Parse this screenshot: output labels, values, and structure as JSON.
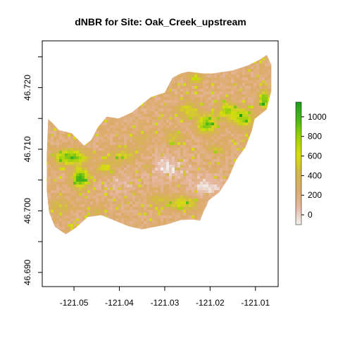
{
  "chart_data": {
    "type": "heatmap",
    "title": "dNBR for Site: Oak_Creek_upstream",
    "xlabel": "",
    "ylabel": "",
    "xlim": [
      -121.057,
      -121.005
    ],
    "ylim": [
      46.6877,
      46.7276
    ],
    "x_ticks": [
      -121.05,
      -121.04,
      -121.03,
      -121.02,
      -121.01
    ],
    "x_tick_labels": [
      "-121.05",
      "-121.04",
      "-121.03",
      "-121.02",
      "-121.01"
    ],
    "y_ticks": [
      46.69,
      46.7,
      46.71,
      46.72
    ],
    "y_tick_labels": [
      "46.690",
      "46.700",
      "46.710",
      "46.720"
    ],
    "colorbar": {
      "range": [
        -100,
        1150
      ],
      "ticks": [
        0,
        200,
        400,
        600,
        800,
        1000
      ],
      "tick_labels": [
        "0",
        "200",
        "400",
        "600",
        "800",
        "1000"
      ],
      "colors": [
        "#f2f2f2",
        "#e6b8a2",
        "#dcab6a",
        "#d4b84a",
        "#d7dd0e",
        "#9fcf12",
        "#4bb81a",
        "#1e9e1e"
      ]
    },
    "region_outline": [
      [
        -121.0557,
        46.7149
      ],
      [
        -121.0548,
        46.7143
      ],
      [
        -121.0533,
        46.7131
      ],
      [
        -121.0505,
        46.7126
      ],
      [
        -121.0478,
        46.7106
      ],
      [
        -121.0462,
        46.7115
      ],
      [
        -121.0448,
        46.7135
      ],
      [
        -121.0428,
        46.7153
      ],
      [
        -121.0402,
        46.715
      ],
      [
        -121.0372,
        46.716
      ],
      [
        -121.0352,
        46.7172
      ],
      [
        -121.033,
        46.7185
      ],
      [
        -121.03,
        46.7192
      ],
      [
        -121.0283,
        46.7216
      ],
      [
        -121.0265,
        46.7223
      ],
      [
        -121.0248,
        46.7226
      ],
      [
        -121.0215,
        46.7223
      ],
      [
        -121.0195,
        46.7223
      ],
      [
        -121.015,
        46.7228
      ],
      [
        -121.0117,
        46.7236
      ],
      [
        -121.0092,
        46.7245
      ],
      [
        -121.0075,
        46.7253
      ],
      [
        -121.0065,
        46.7237
      ],
      [
        -121.0065,
        46.7195
      ],
      [
        -121.0075,
        46.7165
      ],
      [
        -121.0102,
        46.7149
      ],
      [
        -121.0108,
        46.713
      ],
      [
        -121.0122,
        46.7103
      ],
      [
        -121.0142,
        46.7083
      ],
      [
        -121.016,
        46.7052
      ],
      [
        -121.018,
        46.703
      ],
      [
        -121.0203,
        46.7017
      ],
      [
        -121.0208,
        46.7008
      ],
      [
        -121.0215,
        46.6998
      ],
      [
        -121.0222,
        46.6984
      ],
      [
        -121.0237,
        46.6986
      ],
      [
        -121.0265,
        46.6985
      ],
      [
        -121.0295,
        46.6978
      ],
      [
        -121.0322,
        46.6974
      ],
      [
        -121.035,
        46.697
      ],
      [
        -121.038,
        46.6975
      ],
      [
        -121.041,
        46.6984
      ],
      [
        -121.044,
        46.6993
      ],
      [
        -121.047,
        46.699
      ],
      [
        -121.0495,
        46.6973
      ],
      [
        -121.0518,
        46.6962
      ],
      [
        -121.0542,
        46.6974
      ],
      [
        -121.0555,
        46.6998
      ],
      [
        -121.056,
        46.7032
      ],
      [
        -121.056,
        46.709
      ],
      [
        -121.0557,
        46.7149
      ]
    ],
    "value_features": [
      {
        "lon": -121.0508,
        "lat": 46.7087,
        "rx": 0.0035,
        "ry": 0.0012,
        "value": 950
      },
      {
        "lon": -121.0486,
        "lat": 46.7053,
        "rx": 0.0018,
        "ry": 0.0016,
        "value": 1050
      },
      {
        "lon": -121.0392,
        "lat": 46.709,
        "rx": 0.003,
        "ry": 0.0012,
        "value": 550
      },
      {
        "lon": -121.0432,
        "lat": 46.707,
        "rx": 0.002,
        "ry": 0.001,
        "value": 600
      },
      {
        "lon": -121.0335,
        "lat": 46.7072,
        "rx": 0.0018,
        "ry": 0.001,
        "value": 500
      },
      {
        "lon": -121.0262,
        "lat": 46.7013,
        "rx": 0.003,
        "ry": 0.0012,
        "value": 650
      },
      {
        "lon": -121.0315,
        "lat": 46.7018,
        "rx": 0.002,
        "ry": 0.001,
        "value": 450
      },
      {
        "lon": -121.0208,
        "lat": 46.7141,
        "rx": 0.0022,
        "ry": 0.0016,
        "value": 900
      },
      {
        "lon": -121.0128,
        "lat": 46.715,
        "rx": 0.0022,
        "ry": 0.0015,
        "value": 850
      },
      {
        "lon": -121.0162,
        "lat": 46.7163,
        "rx": 0.002,
        "ry": 0.0014,
        "value": 750
      },
      {
        "lon": -121.0248,
        "lat": 46.7163,
        "rx": 0.0025,
        "ry": 0.0012,
        "value": 600
      },
      {
        "lon": -121.028,
        "lat": 46.7118,
        "rx": 0.002,
        "ry": 0.0012,
        "value": 500
      },
      {
        "lon": -121.008,
        "lat": 46.718,
        "rx": 0.0013,
        "ry": 0.0015,
        "value": 950
      },
      {
        "lon": -121.0185,
        "lat": 46.71,
        "rx": 0.002,
        "ry": 0.001,
        "value": 450
      },
      {
        "lon": -121.0232,
        "lat": 46.7215,
        "rx": 0.0015,
        "ry": 0.0008,
        "value": 650
      },
      {
        "lon": -121.053,
        "lat": 46.7007,
        "rx": 0.0025,
        "ry": 0.0012,
        "value": 450
      },
      {
        "lon": -121.045,
        "lat": 46.7,
        "rx": 0.002,
        "ry": 0.0008,
        "value": 400
      },
      {
        "lon": -121.035,
        "lat": 46.7118,
        "rx": 0.0022,
        "ry": 0.0015,
        "value": 350
      },
      {
        "lon": -121.03,
        "lat": 46.707,
        "rx": 0.005,
        "ry": 0.0018,
        "value": -50
      },
      {
        "lon": -121.0208,
        "lat": 46.704,
        "rx": 0.004,
        "ry": 0.0016,
        "value": -30
      },
      {
        "lon": -121.04,
        "lat": 46.7043,
        "rx": 0.003,
        "ry": 0.0012,
        "value": 50
      }
    ]
  }
}
